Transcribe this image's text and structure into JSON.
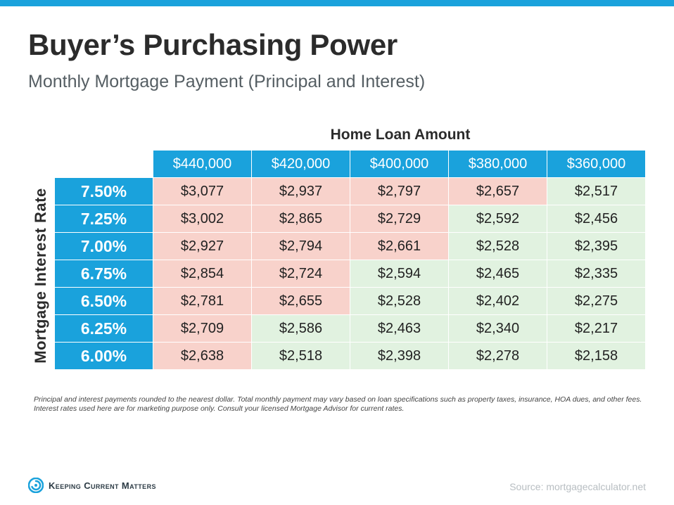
{
  "colors": {
    "accent": "#1aa2dc",
    "above_threshold": "#f8d2cb",
    "below_threshold": "#e1f2e0"
  },
  "title": "Buyer’s Purchasing Power",
  "subtitle": "Monthly Mortgage Payment (Principal and Interest)",
  "footnote": "Principal and interest payments rounded to the nearest dollar. Total monthly payment may vary based on loan specifications such as property taxes, insurance, HOA dues, and other fees. Interest rates used here are for marketing purpose only. Consult your licensed Mortgage Advisor for current rates.",
  "source": "Source: mortgagecalculator.net",
  "brand": {
    "name": "Keeping Current Matters",
    "icon": "kcm-swirl-icon"
  },
  "chart_data": {
    "type": "table",
    "title": "Buyer’s Purchasing Power",
    "subtitle": "Monthly Mortgage Payment (Principal and Interest)",
    "column_group_label": "Home Loan Amount",
    "row_group_label": "Mortgage  Interest Rate",
    "columns": [
      "$440,000",
      "$420,000",
      "$400,000",
      "$380,000",
      "$360,000"
    ],
    "rows": [
      {
        "rate": "7.50%",
        "values": [
          "$3,077",
          "$2,937",
          "$2,797",
          "$2,657",
          "$2,517"
        ],
        "highlight": [
          "high",
          "high",
          "high",
          "high",
          "ok"
        ]
      },
      {
        "rate": "7.25%",
        "values": [
          "$3,002",
          "$2,865",
          "$2,729",
          "$2,592",
          "$2,456"
        ],
        "highlight": [
          "high",
          "high",
          "high",
          "ok",
          "ok"
        ]
      },
      {
        "rate": "7.00%",
        "values": [
          "$2,927",
          "$2,794",
          "$2,661",
          "$2,528",
          "$2,395"
        ],
        "highlight": [
          "high",
          "high",
          "high",
          "ok",
          "ok"
        ]
      },
      {
        "rate": "6.75%",
        "values": [
          "$2,854",
          "$2,724",
          "$2,594",
          "$2,465",
          "$2,335"
        ],
        "highlight": [
          "high",
          "high",
          "ok",
          "ok",
          "ok"
        ]
      },
      {
        "rate": "6.50%",
        "values": [
          "$2,781",
          "$2,655",
          "$2,528",
          "$2,402",
          "$2,275"
        ],
        "highlight": [
          "high",
          "high",
          "ok",
          "ok",
          "ok"
        ]
      },
      {
        "rate": "6.25%",
        "values": [
          "$2,709",
          "$2,586",
          "$2,463",
          "$2,340",
          "$2,217"
        ],
        "highlight": [
          "high",
          "ok",
          "ok",
          "ok",
          "ok"
        ]
      },
      {
        "rate": "6.00%",
        "values": [
          "$2,638",
          "$2,518",
          "$2,398",
          "$2,278",
          "$2,158"
        ],
        "highlight": [
          "high",
          "ok",
          "ok",
          "ok",
          "ok"
        ]
      }
    ]
  }
}
